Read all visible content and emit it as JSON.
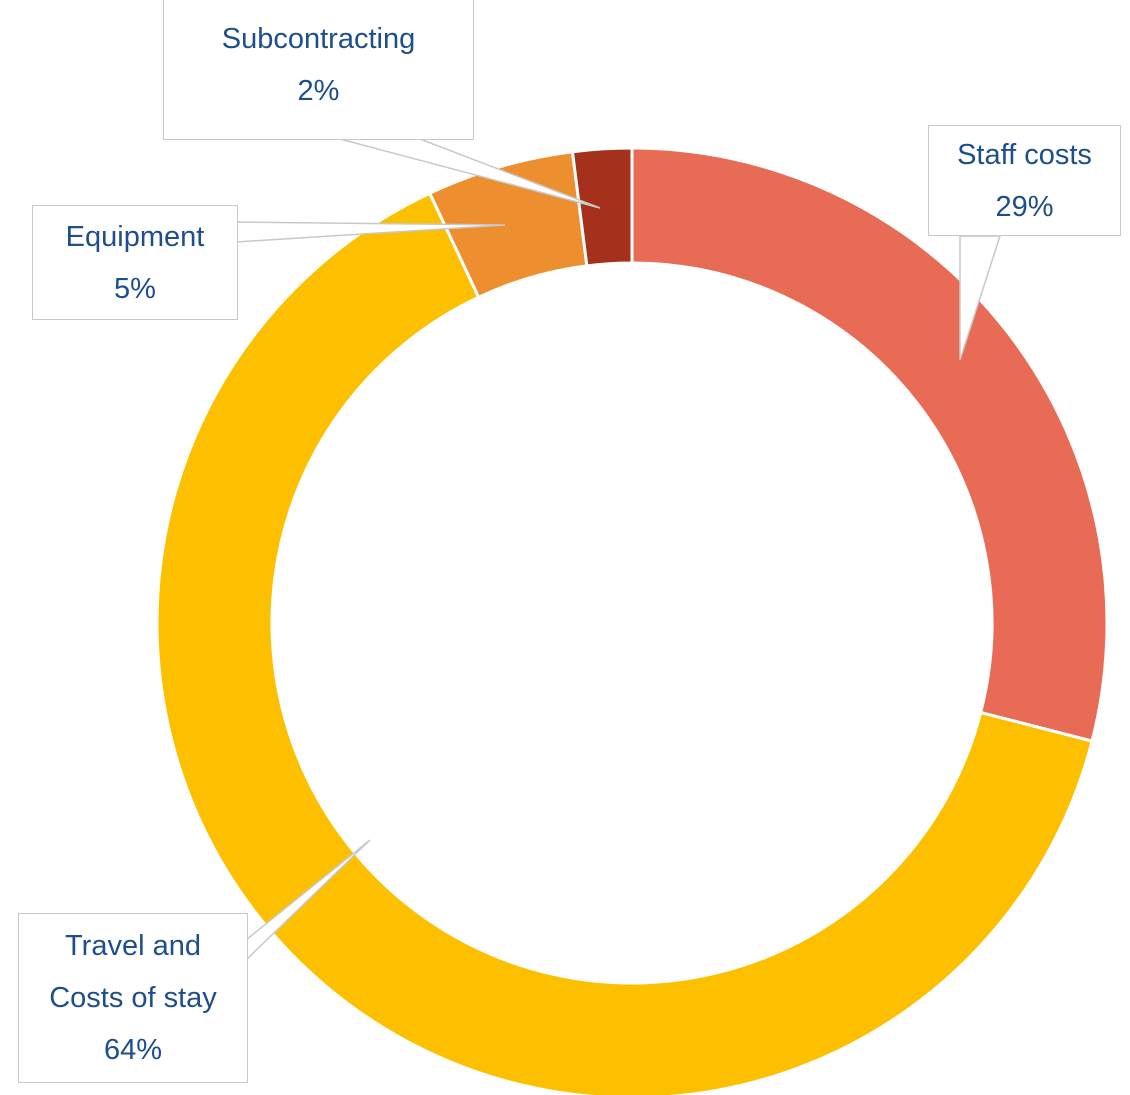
{
  "chart_data": {
    "type": "donut",
    "categories": [
      "Staff costs",
      "Travel and Costs of stay",
      "Equipment",
      "Subcontracting"
    ],
    "values": [
      29,
      64,
      5,
      2
    ],
    "value_labels": [
      "29%",
      "64%",
      "5%",
      "2%"
    ],
    "colors": [
      "#e86c55",
      "#fdc000",
      "#ee8f2f",
      "#a5301b"
    ]
  }
}
